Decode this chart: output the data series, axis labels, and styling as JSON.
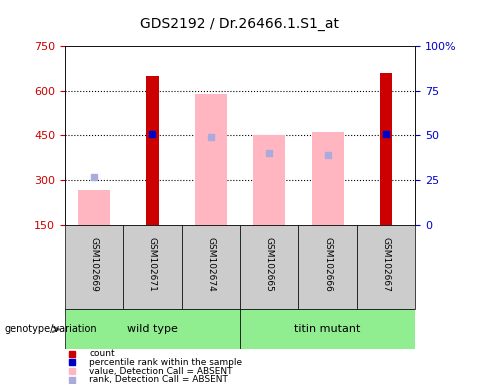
{
  "title": "GDS2192 / Dr.26466.1.S1_at",
  "samples": [
    "GSM102669",
    "GSM102671",
    "GSM102674",
    "GSM102665",
    "GSM102666",
    "GSM102667"
  ],
  "red_bars": [
    null,
    650,
    null,
    null,
    null,
    660
  ],
  "pink_bars": [
    265,
    null,
    590,
    450,
    460,
    null
  ],
  "blue_dots_rank": [
    310,
    455,
    445,
    390,
    385,
    455
  ],
  "blue_dot_absent": [
    true,
    false,
    true,
    true,
    true,
    false
  ],
  "ylim_left": [
    150,
    750
  ],
  "ylim_right": [
    0,
    100
  ],
  "yticks_left": [
    150,
    300,
    450,
    600,
    750
  ],
  "yticks_right": [
    0,
    25,
    50,
    75,
    100
  ],
  "ylabel_left_color": "#cc0000",
  "ylabel_right_color": "#0000cc",
  "gray_bg": "#cccccc",
  "green_bg": "#90ee90",
  "dotted_lines": [
    300,
    450,
    600
  ],
  "wt_label": "wild type",
  "tm_label": "titin mutant",
  "group_label": "genotype/variation",
  "legend_items": [
    {
      "color": "#cc0000",
      "label": "count"
    },
    {
      "color": "#0000cc",
      "label": "percentile rank within the sample"
    },
    {
      "color": "#ffb6c1",
      "label": "value, Detection Call = ABSENT"
    },
    {
      "color": "#aaaadd",
      "label": "rank, Detection Call = ABSENT"
    }
  ]
}
